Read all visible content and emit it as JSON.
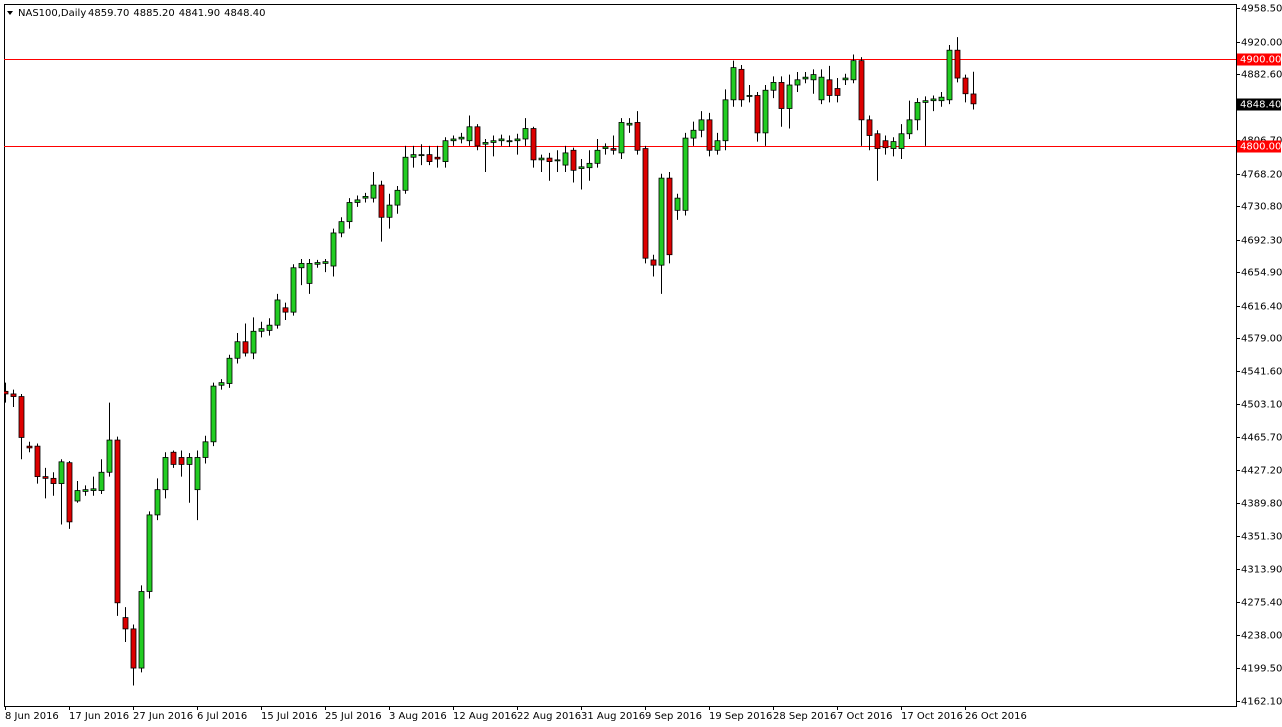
{
  "chart_data": {
    "type": "candlestick",
    "title": "NAS100,Daily",
    "ohlc_labels": [
      "4859.70",
      "4885.20",
      "4841.90",
      "4848.40"
    ],
    "up_color": "#22cc22",
    "down_color": "#dd0000",
    "grid": false,
    "ylim": [
      4156.4,
      4963.1
    ],
    "yticks": [
      {
        "value": 4958.5,
        "label": "4958.50"
      },
      {
        "value": 4920,
        "label": "4920.00"
      },
      {
        "value": 4882.6,
        "label": "4882.60"
      },
      {
        "value": 4806.7,
        "label": "4806.70"
      },
      {
        "value": 4768.2,
        "label": "4768.20"
      },
      {
        "value": 4730.8,
        "label": "4730.80"
      },
      {
        "value": 4692.3,
        "label": "4692.30"
      },
      {
        "value": 4654.9,
        "label": "4654.90"
      },
      {
        "value": 4616.4,
        "label": "4616.40"
      },
      {
        "value": 4579,
        "label": "4579.00"
      },
      {
        "value": 4541.6,
        "label": "4541.60"
      },
      {
        "value": 4503.1,
        "label": "4503.10"
      },
      {
        "value": 4465.7,
        "label": "4465.70"
      },
      {
        "value": 4427.2,
        "label": "4427.20"
      },
      {
        "value": 4389.8,
        "label": "4389.80"
      },
      {
        "value": 4351.3,
        "label": "4351.30"
      },
      {
        "value": 4313.9,
        "label": "4313.90"
      },
      {
        "value": 4275.4,
        "label": "4275.40"
      },
      {
        "value": 4238,
        "label": "4238.00"
      },
      {
        "value": 4199.5,
        "label": "4199.50"
      },
      {
        "value": 4162.1,
        "label": "4162.10"
      }
    ],
    "hlines": [
      {
        "value": 4900,
        "label": "4900.00",
        "color": "#ff0000"
      },
      {
        "value": 4800,
        "label": "4800.00",
        "color": "#ff0000"
      }
    ],
    "last_price": {
      "value": 4848.4,
      "label": "4848.40"
    },
    "categories": [
      "8 Jun 2016",
      null,
      null,
      null,
      null,
      null,
      null,
      null,
      "17 Jun 2016",
      null,
      null,
      null,
      null,
      null,
      null,
      null,
      "27 Jun 2016",
      null,
      null,
      null,
      null,
      null,
      null,
      null,
      "6 Jul 2016",
      null,
      null,
      null,
      null,
      null,
      null,
      null,
      "15 Jul 2016",
      null,
      null,
      null,
      null,
      null,
      null,
      null,
      "25 Jul 2016",
      null,
      null,
      null,
      null,
      null,
      null,
      null,
      "3 Aug 2016",
      null,
      null,
      null,
      null,
      null,
      null,
      null,
      "12 Aug 2016",
      null,
      null,
      null,
      null,
      null,
      null,
      null,
      "22 Aug 2016",
      null,
      null,
      null,
      null,
      null,
      null,
      null,
      "31 Aug 2016",
      null,
      null,
      null,
      null,
      null,
      null,
      null,
      "9 Sep 2016",
      null,
      null,
      null,
      null,
      null,
      null,
      null,
      "19 Sep 2016",
      null,
      null,
      null,
      null,
      null,
      null,
      null,
      "28 Sep 2016",
      null,
      null,
      null,
      null,
      null,
      null,
      null,
      "7 Oct 2016",
      null,
      null,
      null,
      null,
      null,
      null,
      null,
      "17 Oct 2016",
      null,
      null,
      null,
      null,
      null,
      null,
      null,
      "26 Oct 2016",
      null
    ],
    "open": [
      4518,
      4515,
      4512,
      4455,
      4455,
      4420,
      4418,
      4412,
      4436,
      4392,
      4403,
      4404,
      4404,
      4425,
      4462,
      4258,
      4245,
      4200,
      4288,
      4376,
      4405,
      4448,
      4442,
      4434,
      4405,
      4442,
      4460,
      4525,
      4527,
      4556,
      4575,
      4562,
      4587,
      4588,
      4594,
      4614,
      4609,
      4660,
      4642,
      4664,
      4665,
      4662,
      4700,
      4713,
      4735,
      4740,
      4740,
      4755,
      4718,
      4732,
      4749,
      4787,
      4789,
      4790,
      4787,
      4782,
      4806,
      4808,
      4806,
      4822,
      4802,
      4804,
      4806,
      4806,
      4806,
      4808,
      4820,
      4784,
      4786,
      4783,
      4778,
      4795,
      4774,
      4775,
      4780,
      4797,
      4797,
      4792,
      4824,
      4827,
      4797,
      4669,
      4663,
      4763,
      4726,
      4726,
      4809,
      4818,
      4830,
      4795,
      4806,
      4853,
      4888,
      4857,
      4858,
      4815,
      4864,
      4873,
      4843,
      4870,
      4877,
      4876,
      4853,
      4876,
      4866,
      4876,
      4876,
      4898,
      4830,
      4814,
      4806,
      4797,
      4797,
      4814,
      4830,
      4850,
      4852,
      4852,
      4853,
      4910,
      4878,
      4859.7
    ],
    "high": [
      4528,
      4520,
      4515,
      4460,
      4458,
      4430,
      4425,
      4440,
      4438,
      4415,
      4410,
      4420,
      4440,
      4505,
      4466,
      4270,
      4250,
      4295,
      4380,
      4418,
      4448,
      4450,
      4450,
      4447,
      4450,
      4467,
      4528,
      4532,
      4560,
      4585,
      4596,
      4603,
      4598,
      4602,
      4630,
      4620,
      4664,
      4670,
      4670,
      4669,
      4670,
      4705,
      4718,
      4740,
      4743,
      4746,
      4770,
      4760,
      4745,
      4754,
      4800,
      4800,
      4802,
      4800,
      4800,
      4810,
      4812,
      4815,
      4835,
      4825,
      4808,
      4812,
      4813,
      4812,
      4814,
      4832,
      4822,
      4790,
      4792,
      4795,
      4800,
      4798,
      4785,
      4795,
      4808,
      4803,
      4812,
      4832,
      4832,
      4840,
      4800,
      4675,
      4768,
      4770,
      4745,
      4815,
      4828,
      4840,
      4838,
      4815,
      4865,
      4898,
      4893,
      4870,
      4862,
      4870,
      4880,
      4880,
      4882,
      4885,
      4885,
      4888,
      4888,
      4892,
      4878,
      4883,
      4905,
      4902,
      4835,
      4818,
      4812,
      4810,
      4825,
      4852,
      4855,
      4857,
      4858,
      4862,
      4916,
      4925,
      4882,
      4885.2
    ],
    "low": [
      4505,
      4500,
      4440,
      4448,
      4412,
      4395,
      4398,
      4365,
      4360,
      4390,
      4398,
      4398,
      4400,
      4420,
      4260,
      4230,
      4180,
      4195,
      4280,
      4370,
      4395,
      4430,
      4420,
      4390,
      4370,
      4435,
      4455,
      4520,
      4522,
      4550,
      4558,
      4555,
      4580,
      4582,
      4590,
      4600,
      4605,
      4640,
      4630,
      4660,
      4655,
      4650,
      4695,
      4705,
      4730,
      4735,
      4735,
      4690,
      4705,
      4722,
      4745,
      4775,
      4778,
      4778,
      4775,
      4775,
      4800,
      4803,
      4800,
      4795,
      4770,
      4788,
      4800,
      4799,
      4790,
      4800,
      4775,
      4770,
      4760,
      4770,
      4770,
      4758,
      4750,
      4760,
      4775,
      4790,
      4790,
      4785,
      4815,
      4790,
      4665,
      4650,
      4630,
      4665,
      4715,
      4720,
      4800,
      4810,
      4788,
      4790,
      4795,
      4845,
      4845,
      4850,
      4805,
      4800,
      4855,
      4822,
      4820,
      4862,
      4872,
      4860,
      4848,
      4850,
      4850,
      4870,
      4872,
      4800,
      4795,
      4760,
      4790,
      4788,
      4785,
      4808,
      4818,
      4800,
      4840,
      4845,
      4848,
      4873,
      4850,
      4841.9
    ],
    "close": [
      4515,
      4512,
      4465,
      4453,
      4420,
      4418,
      4412,
      4437,
      4368,
      4404,
      4405,
      4406,
      4425,
      4462,
      4275,
      4245,
      4200,
      4288,
      4376,
      4405,
      4442,
      4434,
      4434,
      4442,
      4442,
      4460,
      4524,
      4528,
      4556,
      4575,
      4562,
      4587,
      4590,
      4594,
      4623,
      4609,
      4660,
      4665,
      4665,
      4666,
      4667,
      4700,
      4713,
      4735,
      4738,
      4742,
      4755,
      4718,
      4732,
      4749,
      4787,
      4790,
      4790,
      4782,
      4785,
      4806,
      4808,
      4810,
      4822,
      4800,
      4804,
      4806,
      4808,
      4806,
      4808,
      4820,
      4784,
      4786,
      4782,
      4784,
      4792,
      4772,
      4776,
      4780,
      4795,
      4799,
      4795,
      4827,
      4826,
      4795,
      4671,
      4663,
      4763,
      4675,
      4740,
      4809,
      4818,
      4830,
      4795,
      4806,
      4853,
      4890,
      4853,
      4858,
      4815,
      4864,
      4873,
      4843,
      4870,
      4876,
      4879,
      4882,
      4879,
      4858,
      4858,
      4878,
      4898,
      4830,
      4812,
      4797,
      4798,
      4805,
      4814,
      4830,
      4850,
      4852,
      4854,
      4856,
      4910,
      4878,
      4860,
      4848.4
    ]
  }
}
